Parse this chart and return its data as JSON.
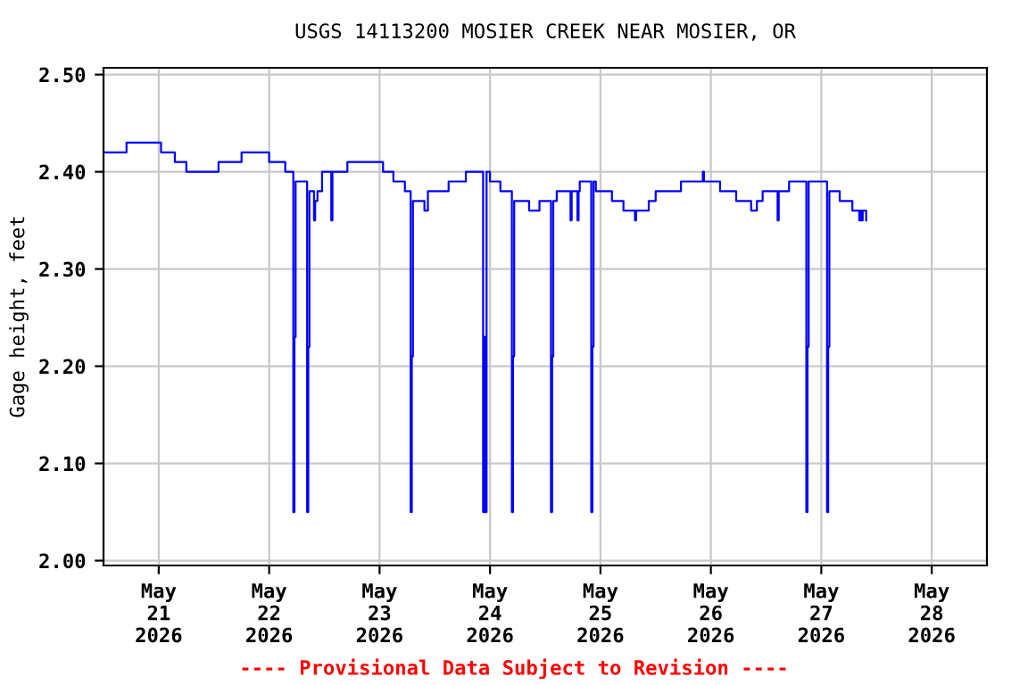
{
  "chart_data": {
    "type": "step",
    "title": "USGS 14113200 MOSIER CREEK NEAR MOSIER, OR",
    "ylabel": "Gage height, feet",
    "annotations": [
      "---- Provisional Data Subject to Revision ----"
    ],
    "series": [
      {
        "color": "#0000ff",
        "x": [
          "2026-05-20T12:00",
          "2026-05-20T17:00",
          "2026-05-21T00:30",
          "2026-05-21T03:30",
          "2026-05-21T06:00",
          "2026-05-21T13:00",
          "2026-05-21T18:00",
          "2026-05-22T00:00",
          "2026-05-22T03:30",
          "2026-05-22T05:15",
          "2026-05-22T05:30",
          "2026-05-22T05:45",
          "2026-05-22T08:15",
          "2026-05-22T08:30",
          "2026-05-22T08:45",
          "2026-05-22T09:45",
          "2026-05-22T10:00",
          "2026-05-22T10:30",
          "2026-05-22T11:30",
          "2026-05-22T13:30",
          "2026-05-22T13:45",
          "2026-05-22T17:00",
          "2026-05-23T00:45",
          "2026-05-23T03:00",
          "2026-05-23T05:30",
          "2026-05-23T06:45",
          "2026-05-23T07:00",
          "2026-05-23T07:15",
          "2026-05-23T09:45",
          "2026-05-23T10:30",
          "2026-05-23T15:00",
          "2026-05-23T18:45",
          "2026-05-23T22:30",
          "2026-05-23T22:45",
          "2026-05-23T23:00",
          "2026-05-23T23:15",
          "2026-05-24T00:00",
          "2026-05-24T02:15",
          "2026-05-24T04:45",
          "2026-05-24T05:00",
          "2026-05-24T05:15",
          "2026-05-24T08:30",
          "2026-05-24T10:45",
          "2026-05-24T13:15",
          "2026-05-24T13:30",
          "2026-05-24T13:45",
          "2026-05-24T14:30",
          "2026-05-24T17:30",
          "2026-05-24T17:45",
          "2026-05-24T19:00",
          "2026-05-24T19:15",
          "2026-05-24T19:30",
          "2026-05-24T22:00",
          "2026-05-24T22:15",
          "2026-05-24T22:30",
          "2026-05-24T23:00",
          "2026-05-25T02:30",
          "2026-05-25T05:00",
          "2026-05-25T07:30",
          "2026-05-25T07:45",
          "2026-05-25T10:30",
          "2026-05-25T12:00",
          "2026-05-25T17:30",
          "2026-05-25T22:15",
          "2026-05-25T22:30",
          "2026-05-26T02:00",
          "2026-05-26T05:30",
          "2026-05-26T08:45",
          "2026-05-26T10:00",
          "2026-05-26T11:15",
          "2026-05-26T14:30",
          "2026-05-26T14:45",
          "2026-05-26T17:00",
          "2026-05-26T20:45",
          "2026-05-26T21:00",
          "2026-05-26T21:15",
          "2026-05-27T01:15",
          "2026-05-27T01:30",
          "2026-05-27T01:45",
          "2026-05-27T04:00",
          "2026-05-27T06:45",
          "2026-05-27T08:15",
          "2026-05-27T08:30",
          "2026-05-27T08:45",
          "2026-05-27T09:00",
          "2026-05-27T09:45"
        ],
        "values": [
          2.42,
          2.43,
          2.42,
          2.41,
          2.4,
          2.41,
          2.42,
          2.41,
          2.4,
          2.05,
          2.23,
          2.39,
          2.05,
          2.22,
          2.38,
          2.35,
          2.37,
          2.38,
          2.4,
          2.35,
          2.4,
          2.41,
          2.4,
          2.39,
          2.38,
          2.05,
          2.21,
          2.37,
          2.36,
          2.38,
          2.39,
          2.4,
          2.05,
          2.23,
          2.05,
          2.4,
          2.39,
          2.38,
          2.05,
          2.21,
          2.37,
          2.36,
          2.37,
          2.05,
          2.21,
          2.37,
          2.38,
          2.35,
          2.38,
          2.35,
          2.38,
          2.39,
          2.05,
          2.22,
          2.39,
          2.38,
          2.37,
          2.36,
          2.35,
          2.36,
          2.37,
          2.38,
          2.39,
          2.4,
          2.39,
          2.38,
          2.37,
          2.36,
          2.37,
          2.38,
          2.35,
          2.38,
          2.39,
          2.05,
          2.22,
          2.39,
          2.05,
          2.22,
          2.38,
          2.37,
          2.36,
          2.35,
          2.36,
          2.35,
          2.36,
          2.35
        ]
      }
    ],
    "xlim": [
      "2026-05-20T12:00",
      "2026-05-28T12:00"
    ],
    "xticks": [
      {
        "value": "2026-05-21",
        "label": "May\n21\n2026"
      },
      {
        "value": "2026-05-22",
        "label": "May\n22\n2026"
      },
      {
        "value": "2026-05-23",
        "label": "May\n23\n2026"
      },
      {
        "value": "2026-05-24",
        "label": "May\n24\n2026"
      },
      {
        "value": "2026-05-25",
        "label": "May\n25\n2026"
      },
      {
        "value": "2026-05-26",
        "label": "May\n26\n2026"
      },
      {
        "value": "2026-05-27",
        "label": "May\n27\n2026"
      },
      {
        "value": "2026-05-28",
        "label": "May\n28\n2026"
      }
    ],
    "ylim": [
      1.995,
      2.507
    ],
    "yticks": [
      {
        "value": 2.0,
        "label": "2.00"
      },
      {
        "value": 2.1,
        "label": "2.10"
      },
      {
        "value": 2.2,
        "label": "2.20"
      },
      {
        "value": 2.3,
        "label": "2.30"
      },
      {
        "value": 2.4,
        "label": "2.40"
      },
      {
        "value": 2.5,
        "label": "2.50"
      }
    ],
    "grid": true,
    "legend": false
  }
}
